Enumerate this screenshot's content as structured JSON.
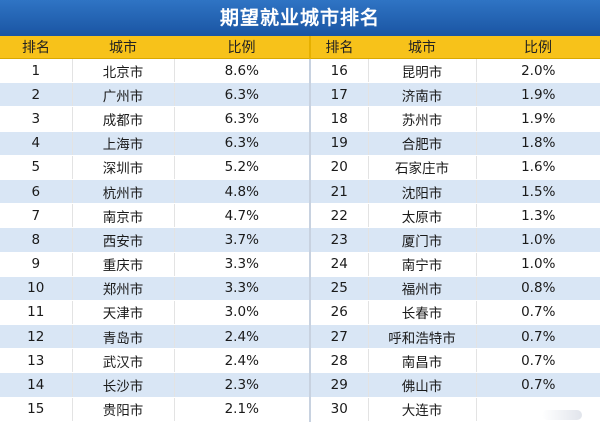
{
  "title": "期望就业城市排名",
  "headers": {
    "rank": "排名",
    "city": "城市",
    "ratio": "比例"
  },
  "rows": [
    {
      "left": {
        "rank": "1",
        "city": "北京市",
        "ratio": "8.6%"
      },
      "right": {
        "rank": "16",
        "city": "昆明市",
        "ratio": "2.0%"
      }
    },
    {
      "left": {
        "rank": "2",
        "city": "广州市",
        "ratio": "6.3%"
      },
      "right": {
        "rank": "17",
        "city": "济南市",
        "ratio": "1.9%"
      }
    },
    {
      "left": {
        "rank": "3",
        "city": "成都市",
        "ratio": "6.3%"
      },
      "right": {
        "rank": "18",
        "city": "苏州市",
        "ratio": "1.9%"
      }
    },
    {
      "left": {
        "rank": "4",
        "city": "上海市",
        "ratio": "6.3%"
      },
      "right": {
        "rank": "19",
        "city": "合肥市",
        "ratio": "1.8%"
      }
    },
    {
      "left": {
        "rank": "5",
        "city": "深圳市",
        "ratio": "5.2%"
      },
      "right": {
        "rank": "20",
        "city": "石家庄市",
        "ratio": "1.6%"
      }
    },
    {
      "left": {
        "rank": "6",
        "city": "杭州市",
        "ratio": "4.8%"
      },
      "right": {
        "rank": "21",
        "city": "沈阳市",
        "ratio": "1.5%"
      }
    },
    {
      "left": {
        "rank": "7",
        "city": "南京市",
        "ratio": "4.7%"
      },
      "right": {
        "rank": "22",
        "city": "太原市",
        "ratio": "1.3%"
      }
    },
    {
      "left": {
        "rank": "8",
        "city": "西安市",
        "ratio": "3.7%"
      },
      "right": {
        "rank": "23",
        "city": "厦门市",
        "ratio": "1.0%"
      }
    },
    {
      "left": {
        "rank": "9",
        "city": "重庆市",
        "ratio": "3.3%"
      },
      "right": {
        "rank": "24",
        "city": "南宁市",
        "ratio": "1.0%"
      }
    },
    {
      "left": {
        "rank": "10",
        "city": "郑州市",
        "ratio": "3.3%"
      },
      "right": {
        "rank": "25",
        "city": "福州市",
        "ratio": "0.8%"
      }
    },
    {
      "left": {
        "rank": "11",
        "city": "天津市",
        "ratio": "3.0%"
      },
      "right": {
        "rank": "26",
        "city": "长春市",
        "ratio": "0.7%"
      }
    },
    {
      "left": {
        "rank": "12",
        "city": "青岛市",
        "ratio": "2.4%"
      },
      "right": {
        "rank": "27",
        "city": "呼和浩特市",
        "ratio": "0.7%"
      }
    },
    {
      "left": {
        "rank": "13",
        "city": "武汉市",
        "ratio": "2.4%"
      },
      "right": {
        "rank": "28",
        "city": "南昌市",
        "ratio": "0.7%"
      }
    },
    {
      "left": {
        "rank": "14",
        "city": "长沙市",
        "ratio": "2.3%"
      },
      "right": {
        "rank": "29",
        "city": "佛山市",
        "ratio": "0.7%"
      }
    },
    {
      "left": {
        "rank": "15",
        "city": "贵阳市",
        "ratio": "2.1%"
      },
      "right": {
        "rank": "30",
        "city": "大连市",
        "ratio": ""
      }
    }
  ]
}
